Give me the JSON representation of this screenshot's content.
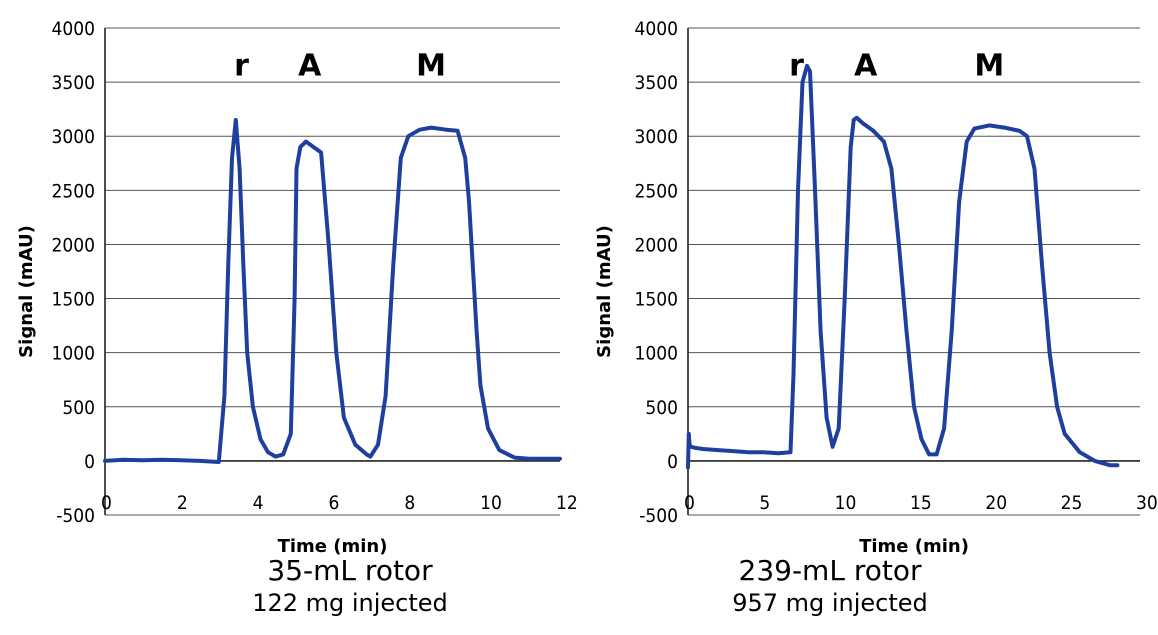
{
  "chart_data": [
    {
      "type": "line",
      "xlabel": "Time (min)",
      "ylabel": "Signal (mAU)",
      "xlim": [
        0,
        12
      ],
      "ylim": [
        -500,
        4000
      ],
      "xticks": [
        "0",
        "2",
        "4",
        "6",
        "8",
        "10",
        "12"
      ],
      "yticks": [
        "-500",
        "0",
        "500",
        "1000",
        "1500",
        "2000",
        "2500",
        "3000",
        "3500",
        "4000"
      ],
      "grid": "horizontal",
      "caption": "35-mL rotor",
      "subcaption": "122 mg injected",
      "peak_labels": [
        {
          "text": "r",
          "x": 3.6,
          "y": 3560
        },
        {
          "text": "A",
          "x": 5.4,
          "y": 3560
        },
        {
          "text": "M",
          "x": 8.6,
          "y": 3560
        }
      ],
      "series": [
        {
          "color": "#1f3f9f",
          "x": [
            0,
            0.5,
            1,
            1.5,
            2,
            2.5,
            3.0,
            3.15,
            3.25,
            3.35,
            3.45,
            3.55,
            3.65,
            3.75,
            3.9,
            4.1,
            4.3,
            4.5,
            4.7,
            4.9,
            5.0,
            5.05,
            5.15,
            5.3,
            5.5,
            5.7,
            5.9,
            6.1,
            6.3,
            6.6,
            6.9,
            7.0,
            7.2,
            7.4,
            7.6,
            7.8,
            8.0,
            8.3,
            8.6,
            9.0,
            9.3,
            9.5,
            9.6,
            9.7,
            9.8,
            9.9,
            10.1,
            10.4,
            10.8,
            11.2,
            11.6,
            12.0
          ],
          "values": [
            0,
            10,
            5,
            10,
            5,
            0,
            -10,
            600,
            1800,
            2800,
            3150,
            2700,
            1800,
            1000,
            500,
            200,
            80,
            40,
            60,
            250,
            1500,
            2700,
            2900,
            2950,
            2900,
            2850,
            2000,
            1000,
            400,
            150,
            60,
            40,
            150,
            600,
            1800,
            2800,
            3000,
            3060,
            3080,
            3060,
            3050,
            2800,
            2400,
            1800,
            1200,
            700,
            300,
            100,
            30,
            20,
            20,
            20
          ]
        }
      ]
    },
    {
      "type": "line",
      "xlabel": "Time (min)",
      "ylabel": "Signal (mAU)",
      "xlim": [
        0,
        30
      ],
      "ylim": [
        -500,
        4000
      ],
      "xticks": [
        "0",
        "5",
        "10",
        "15",
        "20",
        "25",
        "30"
      ],
      "yticks": [
        "-500",
        "0",
        "500",
        "1000",
        "1500",
        "2000",
        "2500",
        "3000",
        "3500",
        "4000"
      ],
      "grid": "horizontal",
      "caption": "239-mL rotor",
      "subcaption": "957 mg injected",
      "peak_labels": [
        {
          "text": "r",
          "x": 7.2,
          "y": 3560
        },
        {
          "text": "A",
          "x": 11.8,
          "y": 3560
        },
        {
          "text": "M",
          "x": 20.0,
          "y": 3560
        }
      ],
      "series": [
        {
          "color": "#1f3f9f",
          "x": [
            0,
            0.05,
            0.1,
            0.2,
            0.5,
            1,
            2,
            3,
            4,
            5,
            6,
            6.8,
            7.0,
            7.3,
            7.6,
            7.9,
            8.1,
            8.4,
            8.8,
            9.2,
            9.6,
            10.0,
            10.4,
            10.8,
            11.0,
            11.2,
            11.6,
            12.3,
            13.0,
            13.5,
            14.0,
            14.5,
            15.0,
            15.5,
            16.0,
            16.5,
            17.0,
            17.5,
            18.0,
            18.5,
            19.0,
            20.0,
            21.0,
            22.0,
            22.5,
            23.0,
            23.5,
            24.0,
            24.5,
            25.0,
            26.0,
            27.0,
            27.5,
            28.0,
            28.5
          ],
          "values": [
            -60,
            250,
            150,
            130,
            120,
            110,
            100,
            90,
            80,
            80,
            70,
            80,
            800,
            2500,
            3500,
            3650,
            3600,
            2600,
            1200,
            400,
            130,
            300,
            1500,
            2900,
            3150,
            3170,
            3120,
            3050,
            2950,
            2700,
            2000,
            1200,
            500,
            200,
            60,
            60,
            300,
            1200,
            2400,
            2950,
            3070,
            3100,
            3080,
            3050,
            3000,
            2700,
            1800,
            1000,
            500,
            250,
            80,
            0,
            -20,
            -40,
            -40
          ]
        }
      ]
    }
  ]
}
